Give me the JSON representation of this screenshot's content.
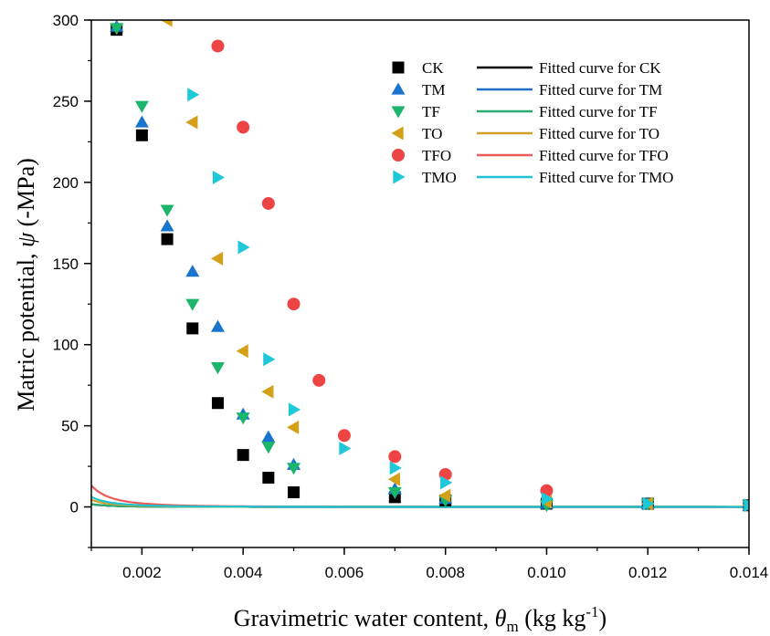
{
  "chart_data": {
    "type": "scatter",
    "title": "",
    "ylabel": {
      "text": "Matric potential, ",
      "symbol": "ψ",
      "units": " (-MPa)"
    },
    "xlabel": {
      "text": "Gravimetric water content, ",
      "symbol": "θ",
      "subscript": "m",
      "units_open": " (kg kg",
      "superscript": "-1",
      "units_close": ")"
    },
    "xlim": [
      0.001,
      0.014
    ],
    "ylim": [
      -25,
      300
    ],
    "xticks": [
      0.002,
      0.004,
      0.006,
      0.008,
      0.01,
      0.012,
      0.014
    ],
    "xtick_labels": [
      "0.002",
      "0.004",
      "0.006",
      "0.008",
      "0.010",
      "0.012",
      "0.014"
    ],
    "yticks": [
      0,
      50,
      100,
      150,
      200,
      250,
      300
    ],
    "ytick_labels": [
      "0",
      "50",
      "100",
      "150",
      "200",
      "250",
      "300"
    ],
    "grid": false,
    "legend_position": "top-right",
    "series": [
      {
        "name": "CK",
        "fit_name": "Fitted curve for CK",
        "marker": "square",
        "color": "#000000",
        "fit_color": "#000000",
        "fit": {
          "a": 0.001207,
          "b": 2.6
        },
        "points": [
          [
            0.0015,
            294
          ],
          [
            0.002,
            229
          ],
          [
            0.0025,
            165
          ],
          [
            0.003,
            110
          ],
          [
            0.0035,
            64
          ],
          [
            0.004,
            32
          ],
          [
            0.0045,
            18
          ],
          [
            0.005,
            9
          ],
          [
            0.007,
            6
          ],
          [
            0.008,
            4
          ],
          [
            0.01,
            2
          ],
          [
            0.012,
            2
          ],
          [
            0.014,
            1
          ]
        ]
      },
      {
        "name": "TM",
        "fit_name": "Fitted curve for TM",
        "marker": "triangle-up",
        "color": "#1874cd",
        "fit_color": "#1f6fc4",
        "fit": {
          "a": 0.001228,
          "b": 2.6
        },
        "points": [
          [
            0.0015,
            296
          ],
          [
            0.002,
            237
          ],
          [
            0.0025,
            173
          ],
          [
            0.003,
            145
          ],
          [
            0.0035,
            111
          ],
          [
            0.004,
            57
          ],
          [
            0.0045,
            43
          ],
          [
            0.005,
            26
          ],
          [
            0.007,
            11
          ],
          [
            0.008,
            5
          ],
          [
            0.01,
            2
          ],
          [
            0.012,
            2
          ],
          [
            0.014,
            1
          ]
        ]
      },
      {
        "name": "TF",
        "fit_name": "Fitted curve for TF",
        "marker": "triangle-down",
        "color": "#1bb56b",
        "fit_color": "#2aab72",
        "fit": {
          "a": 0.001219,
          "b": 2.6
        },
        "points": [
          [
            0.0015,
            295
          ],
          [
            0.002,
            247
          ],
          [
            0.0025,
            183
          ],
          [
            0.003,
            125
          ],
          [
            0.0035,
            86
          ],
          [
            0.004,
            55
          ],
          [
            0.0045,
            37
          ],
          [
            0.005,
            24
          ],
          [
            0.007,
            9
          ],
          [
            0.008,
            4
          ],
          [
            0.01,
            1
          ],
          [
            0.012,
            2
          ],
          [
            0.014,
            1
          ]
        ]
      },
      {
        "name": "TO",
        "fit_name": "Fitted curve for TO",
        "marker": "triangle-left",
        "color": "#d4a017",
        "fit_color": "#d1a22a",
        "fit": {
          "a": 0.00176,
          "b": 2.6
        },
        "points": [
          [
            0.0025,
            300
          ],
          [
            0.003,
            237
          ],
          [
            0.0035,
            153
          ],
          [
            0.004,
            96
          ],
          [
            0.0045,
            71
          ],
          [
            0.005,
            49
          ],
          [
            0.007,
            17
          ],
          [
            0.008,
            7
          ],
          [
            0.01,
            3
          ],
          [
            0.012,
            2
          ],
          [
            0.014,
            1
          ]
        ]
      },
      {
        "name": "TFO",
        "fit_name": "Fitted curve for TFO",
        "marker": "circle",
        "color": "#ef4444",
        "fit_color": "#ec5a5a",
        "fit": {
          "a": 0.0027,
          "b": 2.6
        },
        "points": [
          [
            0.0035,
            284
          ],
          [
            0.004,
            234
          ],
          [
            0.0045,
            187
          ],
          [
            0.005,
            125
          ],
          [
            0.0055,
            78
          ],
          [
            0.006,
            44
          ],
          [
            0.007,
            31
          ],
          [
            0.008,
            20
          ],
          [
            0.01,
            10
          ]
        ]
      },
      {
        "name": "TMO",
        "fit_name": "Fitted curve for TMO",
        "marker": "triangle-right",
        "color": "#1fc8d8",
        "fit_color": "#1ec3cf",
        "fit": {
          "a": 0.00202,
          "b": 2.6
        },
        "points": [
          [
            0.003,
            254
          ],
          [
            0.0035,
            203
          ],
          [
            0.004,
            160
          ],
          [
            0.0045,
            91
          ],
          [
            0.005,
            60
          ],
          [
            0.006,
            36
          ],
          [
            0.007,
            24
          ],
          [
            0.008,
            15
          ],
          [
            0.01,
            5
          ],
          [
            0.012,
            2
          ],
          [
            0.014,
            1
          ]
        ]
      }
    ]
  }
}
